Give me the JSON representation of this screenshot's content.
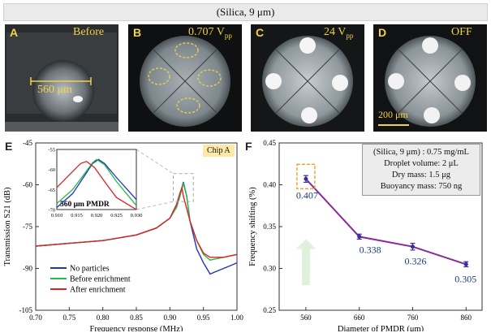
{
  "header": {
    "title": "(Silica, 9 μm)"
  },
  "photos": [
    {
      "letter": "A",
      "caption": "Before",
      "scale_label": "560 μm"
    },
    {
      "letter": "B",
      "caption": "0.707 V",
      "caption_sub": "pp"
    },
    {
      "letter": "C",
      "caption": "24 V",
      "caption_sub": "pp"
    },
    {
      "letter": "D",
      "caption": "OFF",
      "scale_label": "200 μm"
    }
  ],
  "panel_e": {
    "letter": "E",
    "badge": "Chip A",
    "inset_label": "560 μm PMDR",
    "legend": [
      "No particles",
      "Before enrichment",
      "After enrichment"
    ]
  },
  "panel_f": {
    "letter": "F",
    "info_lines": [
      "(Silica, 9 μm) : 0.75 mg/mL",
      "Droplet volume: 2 μL",
      "Dry mass: 1.5 μg",
      "Buoyancy mass: 750 ng"
    ]
  },
  "colors": {
    "no_particles": "#2233bb",
    "before": "#22bb44",
    "after": "#dd2222",
    "trend_line": "#8a2a9a",
    "value_text": "#1f3a7a",
    "badge_bg": "#fde9a8",
    "photo_label": "#f2d24a"
  },
  "chart_data": [
    {
      "type": "line",
      "title": "",
      "xlabel": "Frequency response (MHz)",
      "ylabel": "Transmission S21 (dB)",
      "xlim": [
        0.7,
        1.0
      ],
      "ylim": [
        -105,
        -45
      ],
      "xticks": [
        "0.70",
        "0.75",
        "0.80",
        "0.85",
        "0.90",
        "0.95",
        "1.00"
      ],
      "yticks": [
        "-45",
        "-60",
        "-75",
        "-90",
        "-105"
      ],
      "series": [
        {
          "name": "No particles",
          "x": [
            0.7,
            0.75,
            0.8,
            0.85,
            0.88,
            0.9,
            0.91,
            0.915,
            0.92,
            0.925,
            0.93,
            0.94,
            0.95,
            0.96,
            0.97,
            0.98,
            0.99,
            1.0
          ],
          "y": [
            -82,
            -81,
            -80,
            -78,
            -75.5,
            -72,
            -68,
            -64,
            -59,
            -64,
            -73,
            -83,
            -88,
            -92,
            -91,
            -90,
            -89,
            -88
          ]
        },
        {
          "name": "Before enrichment",
          "x": [
            0.7,
            0.75,
            0.8,
            0.85,
            0.88,
            0.9,
            0.91,
            0.915,
            0.92,
            0.925,
            0.93,
            0.94,
            0.95,
            0.96,
            0.97,
            0.98,
            0.99,
            1.0
          ],
          "y": [
            -82,
            -81,
            -80,
            -78,
            -75.5,
            -72,
            -68,
            -64,
            -59.5,
            -64,
            -73,
            -80,
            -85,
            -87,
            -86.5,
            -86,
            -85.5,
            -85
          ]
        },
        {
          "name": "After enrichment",
          "x": [
            0.7,
            0.75,
            0.8,
            0.85,
            0.88,
            0.9,
            0.91,
            0.915,
            0.918,
            0.92,
            0.93,
            0.94,
            0.95,
            0.96,
            0.97,
            0.98,
            0.99,
            1.0
          ],
          "y": [
            -82,
            -81,
            -80,
            -78,
            -75.5,
            -72,
            -67,
            -63,
            -61,
            -64,
            -73,
            -80,
            -84.5,
            -86,
            -86,
            -86,
            -85.5,
            -85
          ]
        }
      ],
      "inset": {
        "xlim": [
          0.91,
          0.93
        ],
        "ylim": [
          -70,
          -55
        ],
        "xticks": [
          "0.910",
          "0.915",
          "0.920",
          "0.925",
          "0.930"
        ],
        "yticks": [
          "-55",
          "-60",
          "-65",
          "-70"
        ],
        "series": [
          {
            "name": "No particles",
            "x": [
              0.91,
              0.914,
              0.917,
              0.919,
              0.9205,
              0.922,
              0.925,
              0.93
            ],
            "y": [
              -69.5,
              -66,
              -61.5,
              -58.5,
              -57.5,
              -58.5,
              -62,
              -67.5
            ]
          },
          {
            "name": "Before enrichment",
            "x": [
              0.91,
              0.914,
              0.917,
              0.919,
              0.92,
              0.922,
              0.925,
              0.93
            ],
            "y": [
              -68.5,
              -65,
              -61,
              -58.3,
              -57.5,
              -58.8,
              -63,
              -69
            ]
          },
          {
            "name": "After enrichment",
            "x": [
              0.91,
              0.913,
              0.916,
              0.9175,
              0.9195,
              0.922,
              0.925,
              0.93
            ],
            "y": [
              -64.5,
              -61.5,
              -58.5,
              -58,
              -59.5,
              -63,
              -67,
              -70
            ]
          }
        ]
      }
    },
    {
      "type": "line",
      "title": "",
      "xlabel": "Diameter of PMDR (μm)",
      "ylabel": "Frequency shifting (%)",
      "xlim": [
        510,
        890
      ],
      "ylim": [
        0.25,
        0.45
      ],
      "xticks": [
        "560",
        "660",
        "760",
        "860"
      ],
      "yticks": [
        "0.25",
        "0.30",
        "0.35",
        "0.40",
        "0.45"
      ],
      "series": [
        {
          "name": "Frequency shifting",
          "x": [
            560,
            660,
            760,
            860
          ],
          "y": [
            0.407,
            0.338,
            0.326,
            0.305
          ],
          "error": [
            0.004,
            0.003,
            0.004,
            0.003
          ]
        }
      ],
      "value_labels": [
        "0.407",
        "0.338",
        "0.326",
        "0.305"
      ]
    }
  ]
}
